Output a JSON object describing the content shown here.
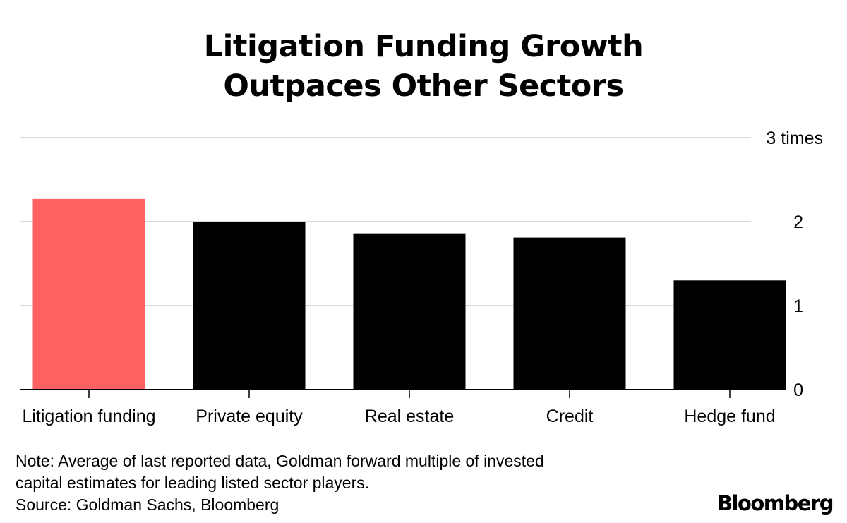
{
  "chart_data": {
    "type": "bar",
    "title_lines": [
      "Litigation Funding Growth",
      "Outpaces Other Sectors"
    ],
    "categories": [
      "Litigation funding",
      "Private equity",
      "Real estate",
      "Credit",
      "Hedge fund"
    ],
    "values": [
      2.27,
      2.0,
      1.86,
      1.81,
      1.3
    ],
    "bar_colors": [
      "#ff6262",
      "#000000",
      "#000000",
      "#000000",
      "#000000"
    ],
    "ylim": [
      0,
      3
    ],
    "y_ticks": [
      {
        "value": 0,
        "label": "0"
      },
      {
        "value": 1,
        "label": "1"
      },
      {
        "value": 2,
        "label": "2"
      },
      {
        "value": 3,
        "label": "3 times"
      }
    ],
    "grid": true,
    "y_axis_side": "right"
  },
  "note_lines": [
    "Note: Average of last reported data, Goldman forward multiple of invested",
    "capital estimates for leading listed sector players."
  ],
  "source": "Source: Goldman Sachs, Bloomberg",
  "brand": "Bloomberg",
  "colors": {
    "highlight": "#ff6262",
    "bar": "#000000",
    "grid": "#d9d9d9"
  }
}
